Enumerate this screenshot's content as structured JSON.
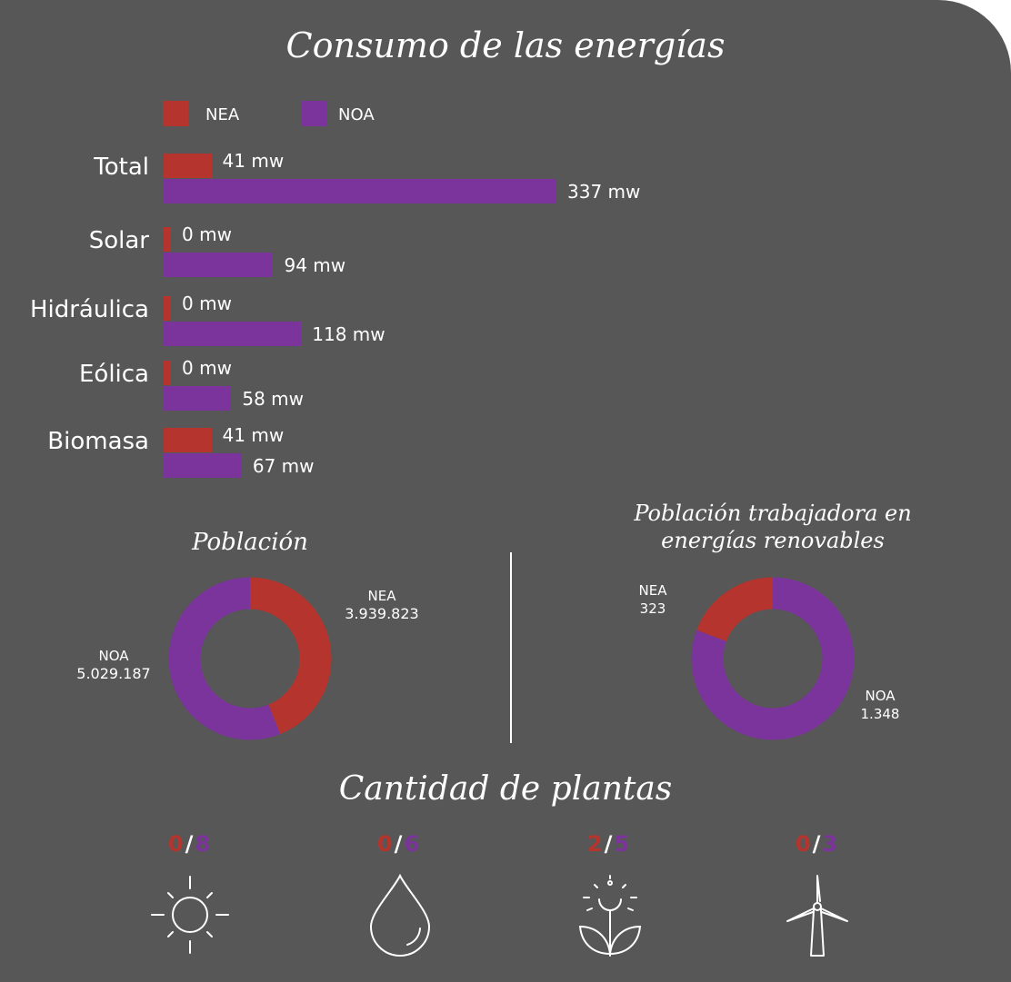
{
  "title": "Consumo de las energías",
  "legend": [
    {
      "label": "NEA",
      "color": "#b5352e"
    },
    {
      "label": "NOA",
      "color": "#7b349b"
    }
  ],
  "chart_data": [
    {
      "type": "bar",
      "orientation": "horizontal",
      "title": "Consumo de las energías",
      "categories": [
        "Total",
        "Solar",
        "Hidráulica",
        "Eólica",
        "Biomasa"
      ],
      "series": [
        {
          "name": "NEA",
          "values": [
            41,
            0,
            0,
            0,
            41
          ],
          "labels": [
            "41 mw",
            "0 mw",
            "0 mw",
            "0 mw",
            "41 mw"
          ]
        },
        {
          "name": "NOA",
          "values": [
            337,
            94,
            118,
            58,
            67
          ],
          "labels": [
            "337 mw",
            "94 mw",
            "118 mw",
            "58 mw",
            "67 mw"
          ]
        }
      ],
      "legend": "top-left",
      "grid": false
    },
    {
      "type": "pie",
      "title": "Población",
      "slices": [
        {
          "label": "NEA",
          "value": 3939823,
          "display": "3.939.823"
        },
        {
          "label": "NOA",
          "value": 5029187,
          "display": "5.029.187"
        }
      ]
    },
    {
      "type": "pie",
      "title": "Población trabajadora en energías renovables",
      "slices": [
        {
          "label": "NOA",
          "value": 1348,
          "display": "1.348"
        },
        {
          "label": "NEA",
          "value": 323,
          "display": "323"
        }
      ]
    }
  ],
  "plants": {
    "title": "Cantidad de plantas",
    "items": [
      {
        "nea": "0",
        "sep": "/",
        "noa": "8",
        "icon": "sun-icon"
      },
      {
        "nea": "0",
        "sep": "/",
        "noa": "6",
        "icon": "water-drop-icon"
      },
      {
        "nea": "2",
        "sep": "/",
        "noa": "5",
        "icon": "sun-plant-icon"
      },
      {
        "nea": "0",
        "sep": "/",
        "noa": "3",
        "icon": "wind-turbine-icon"
      }
    ]
  },
  "colors": {
    "nea": "#b5352e",
    "noa": "#7b349b",
    "background": "#575757",
    "text": "#ffffff"
  }
}
